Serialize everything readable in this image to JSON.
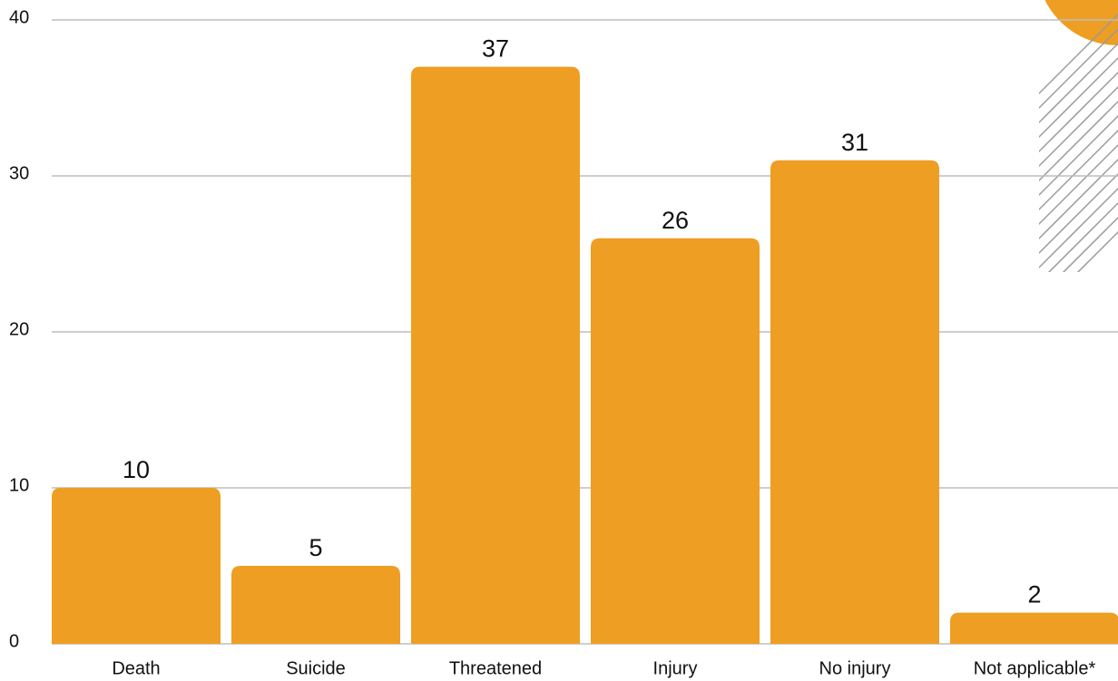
{
  "chart_data": {
    "type": "bar",
    "categories": [
      "Death",
      "Suicide",
      "Threatened",
      "Injury",
      "No injury",
      "Not applicable*"
    ],
    "values": [
      10,
      5,
      37,
      26,
      31,
      2
    ],
    "color": "#ee9e22",
    "ylim": [
      0,
      40
    ],
    "yticks": [
      0,
      10,
      20,
      30,
      40
    ],
    "grid": true
  }
}
